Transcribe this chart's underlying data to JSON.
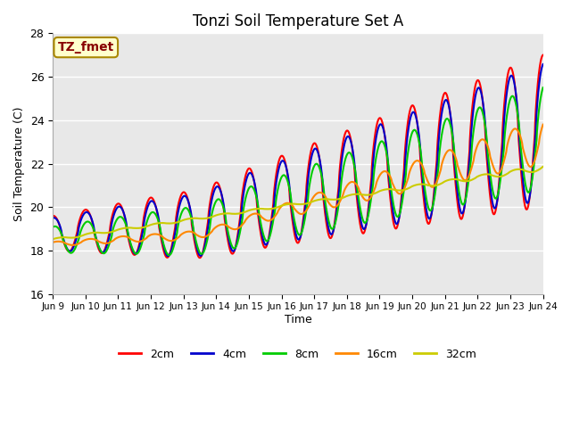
{
  "title": "Tonzi Soil Temperature Set A",
  "xlabel": "Time",
  "ylabel": "Soil Temperature (C)",
  "ylim": [
    16,
    28
  ],
  "xlim": [
    0,
    15
  ],
  "xtick_labels": [
    "Jun 9",
    "Jun 10",
    "Jun 11",
    "Jun 12",
    "Jun 13",
    "Jun 14",
    "Jun 15",
    "Jun 16",
    "Jun 17",
    "Jun 18",
    "Jun 19",
    "Jun 20",
    "Jun 21",
    "Jun 22",
    "Jun 23",
    "Jun 24"
  ],
  "annotation": "TZ_fmet",
  "annotation_color": "#880000",
  "annotation_bg": "#ffffcc",
  "annotation_edge": "#aa8800",
  "background_color": "#e8e8e8",
  "series": [
    {
      "label": "2cm",
      "color": "#ff0000",
      "lw": 1.5
    },
    {
      "label": "4cm",
      "color": "#0000cc",
      "lw": 1.5
    },
    {
      "label": "8cm",
      "color": "#00cc00",
      "lw": 1.5
    },
    {
      "label": "16cm",
      "color": "#ff8800",
      "lw": 1.5
    },
    {
      "label": "32cm",
      "color": "#cccc00",
      "lw": 1.5
    }
  ]
}
